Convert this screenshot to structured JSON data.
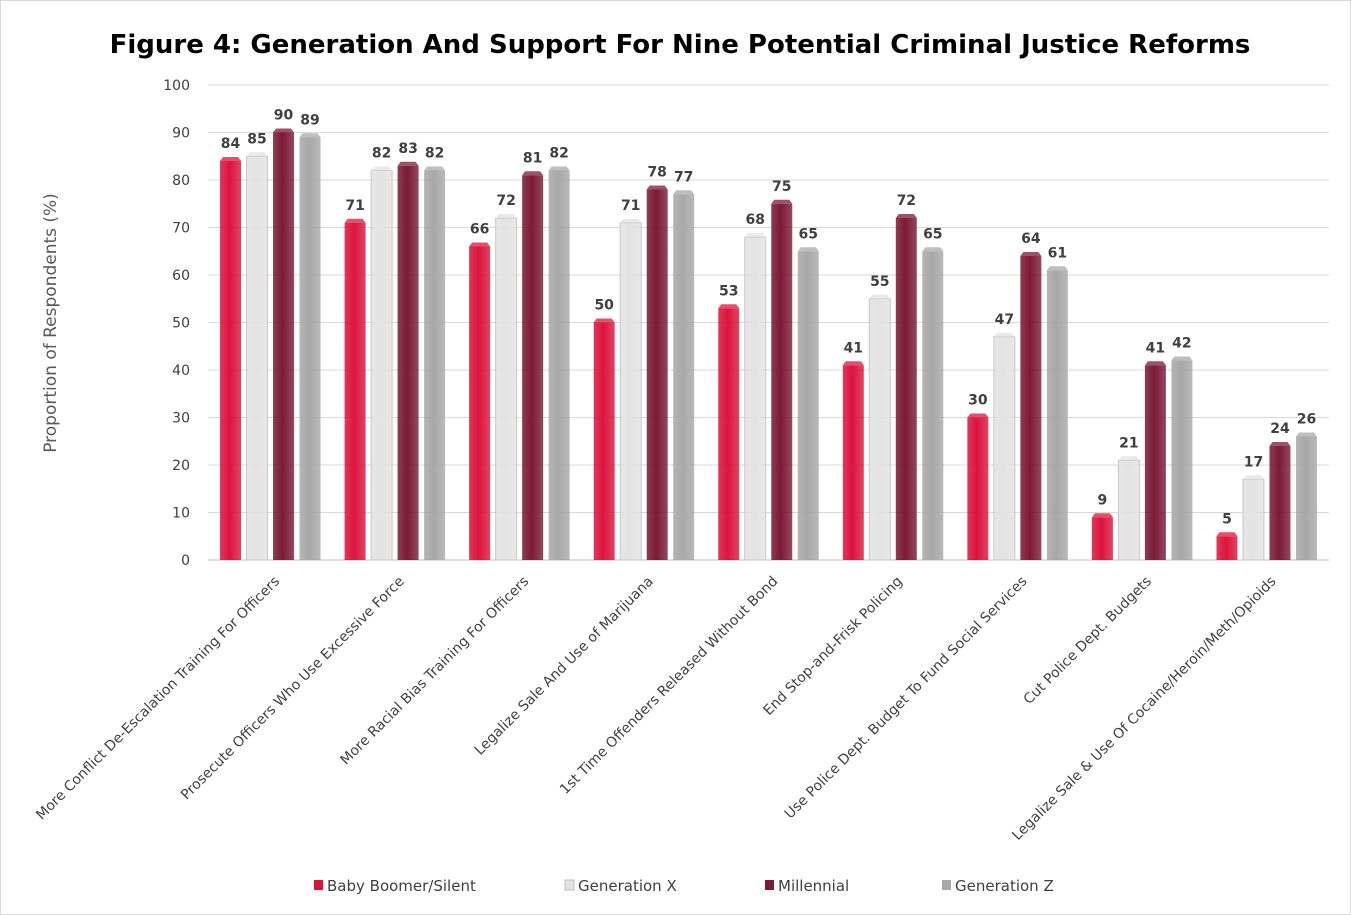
{
  "chart_data": {
    "type": "bar",
    "title": "Figure 4: Generation And Support For Nine Potential Criminal Justice Reforms",
    "xlabel": "",
    "ylabel": "Proportion of Respondents (%)",
    "ylim": [
      0,
      100
    ],
    "yticks": [
      0,
      10,
      20,
      30,
      40,
      50,
      60,
      70,
      80,
      90,
      100
    ],
    "grid": true,
    "legend_position": "bottom",
    "categories": [
      "More Conflict De-Escalation Training For Officers",
      "Prosecute Officers Who Use Excessive Force",
      "More Racial Bias Training For Officers",
      "Legalize Sale And Use of Marijuana",
      "1st Time Offenders Released Without Bond",
      "End Stop-and-Frisk Policing",
      "Use Police Dept. Budget To Fund Social Services",
      "Cut Police Dept. Budgets",
      "Legalize Sale & Use Of Cocaine/Heroin/Meth/Opioids"
    ],
    "series": [
      {
        "name": "Baby Boomer/Silent",
        "color": "#dc143c",
        "values": [
          84,
          71,
          66,
          50,
          53,
          41,
          30,
          9,
          5
        ]
      },
      {
        "name": "Generation X",
        "color": "#e3e3e3",
        "values": [
          85,
          82,
          72,
          71,
          68,
          55,
          47,
          21,
          17
        ]
      },
      {
        "name": "Millennial",
        "color": "#7b1a35",
        "values": [
          90,
          83,
          81,
          78,
          75,
          72,
          64,
          41,
          24
        ]
      },
      {
        "name": "Generation Z",
        "color": "#a8a8a8",
        "values": [
          89,
          82,
          82,
          77,
          65,
          65,
          61,
          42,
          26
        ]
      }
    ]
  }
}
